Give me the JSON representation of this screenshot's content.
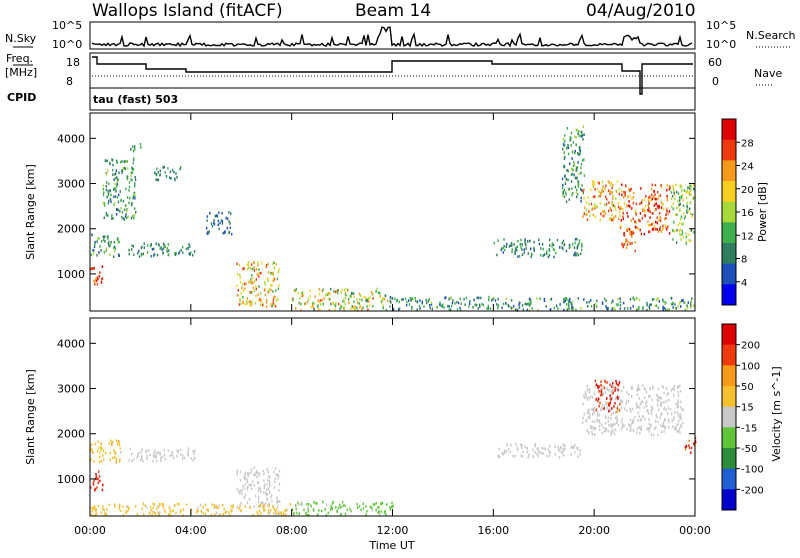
{
  "header": {
    "title": "Wallops Island (fitACF)",
    "beam": "Beam 14",
    "date": "04/Aug/2010"
  },
  "panels": {
    "sky": {
      "label": "N.Sky",
      "ticks": [
        "10^5",
        "10^0"
      ],
      "right_label": "N.Search",
      "right_ticks": [
        "10^5",
        "10^0"
      ]
    },
    "freq": {
      "label": "Freq.",
      "unit": "[MHz]",
      "ticks": [
        "18",
        "8"
      ],
      "right_label": "Nave",
      "right_ticks": [
        "60",
        "0"
      ]
    },
    "cpid": {
      "label": "CPID",
      "value": "tau (fast) 503"
    }
  },
  "chart_data": [
    {
      "type": "scatter",
      "title": "Power",
      "xlabel": "Time UT",
      "ylabel": "Slant Range [km]",
      "x_ticks": [
        "00:00",
        "04:00",
        "08:00",
        "12:00",
        "16:00",
        "20:00",
        "00:00"
      ],
      "xlim": [
        0,
        24
      ],
      "ylim": [
        180,
        4560
      ],
      "y_ticks": [
        1000,
        2000,
        3000,
        4000
      ],
      "colorbar": {
        "label": "Power [dB]",
        "ticks": [
          "28",
          "24",
          "20",
          "16",
          "12",
          "8",
          "4"
        ],
        "range": [
          0,
          30
        ],
        "colors": [
          "#0000ee",
          "#1f4fb8",
          "#2e7d5e",
          "#3fae4c",
          "#a8d83a",
          "#f5d020",
          "#f59a1a",
          "#ee3a10",
          "#dd0000"
        ]
      },
      "regions": [
        {
          "t": [
            0.0,
            1.2
          ],
          "r": [
            1400,
            1900
          ],
          "v": [
            6,
            14
          ]
        },
        {
          "t": [
            0.0,
            0.5
          ],
          "r": [
            750,
            1200
          ],
          "v": [
            22,
            30
          ]
        },
        {
          "t": [
            0.5,
            1.8
          ],
          "r": [
            2200,
            3600
          ],
          "v": [
            6,
            14
          ]
        },
        {
          "t": [
            1.5,
            4.2
          ],
          "r": [
            1400,
            1700
          ],
          "v": [
            6,
            12
          ]
        },
        {
          "t": [
            1.5,
            2.0
          ],
          "r": [
            3700,
            3900
          ],
          "v": [
            8,
            14
          ]
        },
        {
          "t": [
            2.5,
            3.6
          ],
          "r": [
            3100,
            3400
          ],
          "v": [
            6,
            12
          ]
        },
        {
          "t": [
            4.6,
            5.6
          ],
          "r": [
            1900,
            2400
          ],
          "v": [
            4,
            9
          ]
        },
        {
          "t": [
            5.8,
            7.5
          ],
          "r": [
            300,
            1300
          ],
          "v": [
            12,
            26
          ]
        },
        {
          "t": [
            8.0,
            11.8
          ],
          "r": [
            220,
            700
          ],
          "v": [
            8,
            24
          ]
        },
        {
          "t": [
            11.8,
            16.0
          ],
          "r": [
            220,
            520
          ],
          "v": [
            4,
            14
          ]
        },
        {
          "t": [
            16.0,
            19.5
          ],
          "r": [
            1400,
            1800
          ],
          "v": [
            6,
            12
          ]
        },
        {
          "t": [
            18.7,
            19.6
          ],
          "r": [
            2600,
            4300
          ],
          "v": [
            6,
            14
          ]
        },
        {
          "t": [
            19.5,
            21.0
          ],
          "r": [
            2200,
            3100
          ],
          "v": [
            14,
            26
          ]
        },
        {
          "t": [
            21.0,
            23.0
          ],
          "r": [
            1900,
            3000
          ],
          "v": [
            18,
            30
          ]
        },
        {
          "t": [
            21.0,
            21.6
          ],
          "r": [
            1500,
            2000
          ],
          "v": [
            20,
            28
          ]
        },
        {
          "t": [
            23.0,
            24.0
          ],
          "r": [
            1700,
            3000
          ],
          "v": [
            8,
            20
          ]
        },
        {
          "t": [
            16.0,
            24.0
          ],
          "r": [
            220,
            500
          ],
          "v": [
            4,
            16
          ]
        }
      ]
    },
    {
      "type": "scatter",
      "title": "Velocity",
      "xlabel": "Time UT",
      "ylabel": "Slant Range [km]",
      "x_ticks": [
        "00:00",
        "04:00",
        "08:00",
        "12:00",
        "16:00",
        "20:00",
        "00:00"
      ],
      "xlim": [
        0,
        24
      ],
      "ylim": [
        180,
        4560
      ],
      "y_ticks": [
        1000,
        2000,
        3000,
        4000
      ],
      "colorbar": {
        "label": "Velocity [m s^-1]",
        "ticks": [
          "200",
          "100",
          "50",
          "15",
          "-15",
          "-50",
          "-100",
          "-200"
        ],
        "range": [
          -250,
          250
        ],
        "colors": [
          "#0000cc",
          "#1f5fd0",
          "#2e8c3a",
          "#5fc43a",
          "#c8c8c8",
          "#f5c030",
          "#f59a1a",
          "#ee3a10",
          "#dd0000"
        ]
      },
      "regions": [
        {
          "t": [
            0.0,
            0.5
          ],
          "r": [
            750,
            1200
          ],
          "v": [
            150,
            250
          ]
        },
        {
          "t": [
            0.0,
            1.2
          ],
          "r": [
            1400,
            1900
          ],
          "v": [
            20,
            90
          ]
        },
        {
          "t": [
            1.5,
            4.2
          ],
          "r": [
            1400,
            1700
          ],
          "v": [
            -10,
            10
          ]
        },
        {
          "t": [
            5.8,
            7.5
          ],
          "r": [
            400,
            1300
          ],
          "v": [
            -10,
            10
          ]
        },
        {
          "t": [
            0.0,
            8.0
          ],
          "r": [
            220,
            480
          ],
          "v": [
            20,
            80
          ]
        },
        {
          "t": [
            8.0,
            12.0
          ],
          "r": [
            220,
            520
          ],
          "v": [
            -80,
            -20
          ]
        },
        {
          "t": [
            16.0,
            19.5
          ],
          "r": [
            1500,
            1800
          ],
          "v": [
            -12,
            12
          ]
        },
        {
          "t": [
            19.5,
            23.5
          ],
          "r": [
            2000,
            3100
          ],
          "v": [
            -12,
            12
          ]
        },
        {
          "t": [
            20.0,
            21.0
          ],
          "r": [
            2500,
            3200
          ],
          "v": [
            120,
            250
          ]
        },
        {
          "t": [
            23.5,
            24.0
          ],
          "r": [
            1600,
            1950
          ],
          "v": [
            120,
            250
          ]
        }
      ]
    }
  ]
}
